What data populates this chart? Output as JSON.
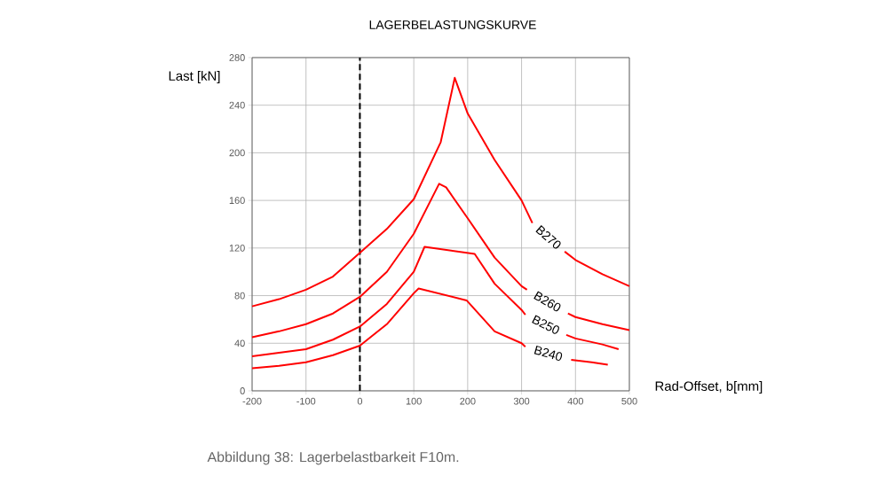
{
  "chart_data": {
    "type": "line",
    "title": "LAGERBELASTUNGSKURVE",
    "xlabel": "Rad-Offset, b[mm]",
    "ylabel": "Last [kN]",
    "annotations": [
      "Abbildung 38: Lagerbelastbarkeit F10m."
    ],
    "xlim": [
      -200,
      500
    ],
    "ylim": [
      0,
      280
    ],
    "xticks": [
      -200,
      -100,
      0,
      100,
      200,
      300,
      400,
      500
    ],
    "yticks": [
      0,
      40,
      80,
      120,
      160,
      200,
      240,
      280
    ],
    "grid": true,
    "marker": "none",
    "line_style": "solid",
    "ref_lines": [
      {
        "axis": "x",
        "value": 0,
        "color": "#000000",
        "line_style": "dashed"
      }
    ],
    "series": [
      {
        "name": "B270",
        "color": "#ff0000",
        "x": [
          -200,
          -150,
          -100,
          -50,
          0,
          50,
          100,
          150,
          176,
          200,
          250,
          300,
          320,
          350,
          380,
          400,
          450,
          500
        ],
        "values": [
          71,
          77,
          85,
          96,
          116,
          136,
          161,
          209,
          263,
          233,
          194,
          160,
          141,
          null,
          117,
          110,
          98,
          88
        ]
      },
      {
        "name": "B260",
        "color": "#ff0000",
        "x": [
          -200,
          -150,
          -100,
          -50,
          0,
          50,
          100,
          147,
          160,
          200,
          250,
          300,
          310,
          350,
          386,
          400,
          450,
          500
        ],
        "values": [
          45,
          50,
          56,
          65,
          79,
          100,
          132,
          174,
          171,
          145,
          112,
          88,
          85,
          null,
          65,
          62,
          56,
          51
        ]
      },
      {
        "name": "B250",
        "color": "#ff0000",
        "x": [
          -200,
          -150,
          -100,
          -50,
          0,
          50,
          100,
          120,
          213,
          250,
          300,
          307,
          345,
          383,
          400,
          450,
          480
        ],
        "values": [
          29,
          32,
          35,
          43,
          54,
          73,
          100,
          121,
          115,
          90,
          68,
          64,
          null,
          47,
          44,
          39,
          35
        ]
      },
      {
        "name": "B240",
        "color": "#ff0000",
        "x": [
          -200,
          -150,
          -100,
          -50,
          0,
          50,
          100,
          109,
          198,
          250,
          300,
          307,
          350,
          392,
          430,
          460
        ],
        "values": [
          19,
          21,
          24,
          30,
          38,
          56,
          82,
          86,
          76,
          50,
          40,
          37,
          null,
          26,
          24,
          22
        ]
      }
    ]
  }
}
